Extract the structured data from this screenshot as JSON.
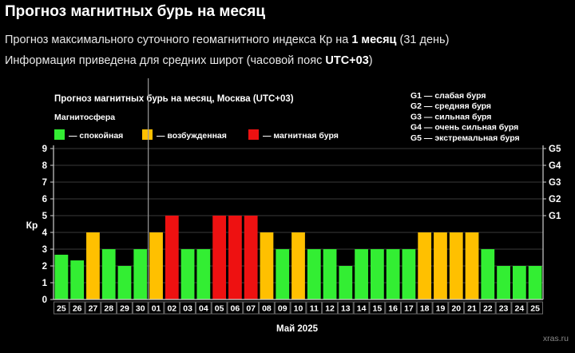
{
  "page": {
    "title": "Прогноз магнитных бурь на месяц",
    "line1_prefix": "Прогноз максимального суточного геомагнитного индекса Кр на ",
    "line1_bold": "1 месяц",
    "line1_suffix": " (31 день)",
    "line2_prefix": "Информация приведена для средних широт (часовой пояс ",
    "line2_bold": "UTC+03",
    "line2_suffix": ")"
  },
  "chart_data": {
    "type": "bar",
    "title": "Прогноз магнитных бурь на месяц, Москва (UTC+03)",
    "legend_title": "Магнитосфера",
    "legend": [
      {
        "key": "calm",
        "label": "— спокойная",
        "color": "#33ee33"
      },
      {
        "key": "excited",
        "label": "— возбужденная",
        "color": "#ffc000"
      },
      {
        "key": "storm",
        "label": "— магнитная буря",
        "color": "#ee1111"
      }
    ],
    "g_legend": [
      "G1 — слабая буря",
      "G2 — средняя буря",
      "G3 — сильная буря",
      "G4 — очень сильная буря",
      "G5 — экстремальная буря"
    ],
    "ylabel": "Кр",
    "xlabel": "Май 2025",
    "ylim": [
      0,
      9
    ],
    "yticks": [
      0,
      1,
      2,
      3,
      4,
      5,
      6,
      7,
      8,
      9
    ],
    "g_scale": [
      {
        "label": "G1",
        "kp": 5
      },
      {
        "label": "G2",
        "kp": 6
      },
      {
        "label": "G3",
        "kp": 7
      },
      {
        "label": "G4",
        "kp": 8
      },
      {
        "label": "G5",
        "kp": 9
      }
    ],
    "categories": [
      "25",
      "26",
      "27",
      "28",
      "29",
      "30",
      "01",
      "02",
      "03",
      "04",
      "05",
      "06",
      "07",
      "08",
      "09",
      "10",
      "11",
      "12",
      "13",
      "14",
      "15",
      "16",
      "17",
      "18",
      "19",
      "20",
      "21",
      "22",
      "23",
      "24",
      "25"
    ],
    "values": [
      2.67,
      2.33,
      4,
      3,
      2,
      3,
      4,
      5,
      3,
      3,
      5,
      5,
      5,
      4,
      3,
      4,
      3,
      3,
      2,
      3,
      3,
      3,
      3,
      4,
      4,
      4,
      4,
      3,
      2,
      2,
      2
    ],
    "divider_after_index": 5,
    "watermark": "xras.ru"
  }
}
